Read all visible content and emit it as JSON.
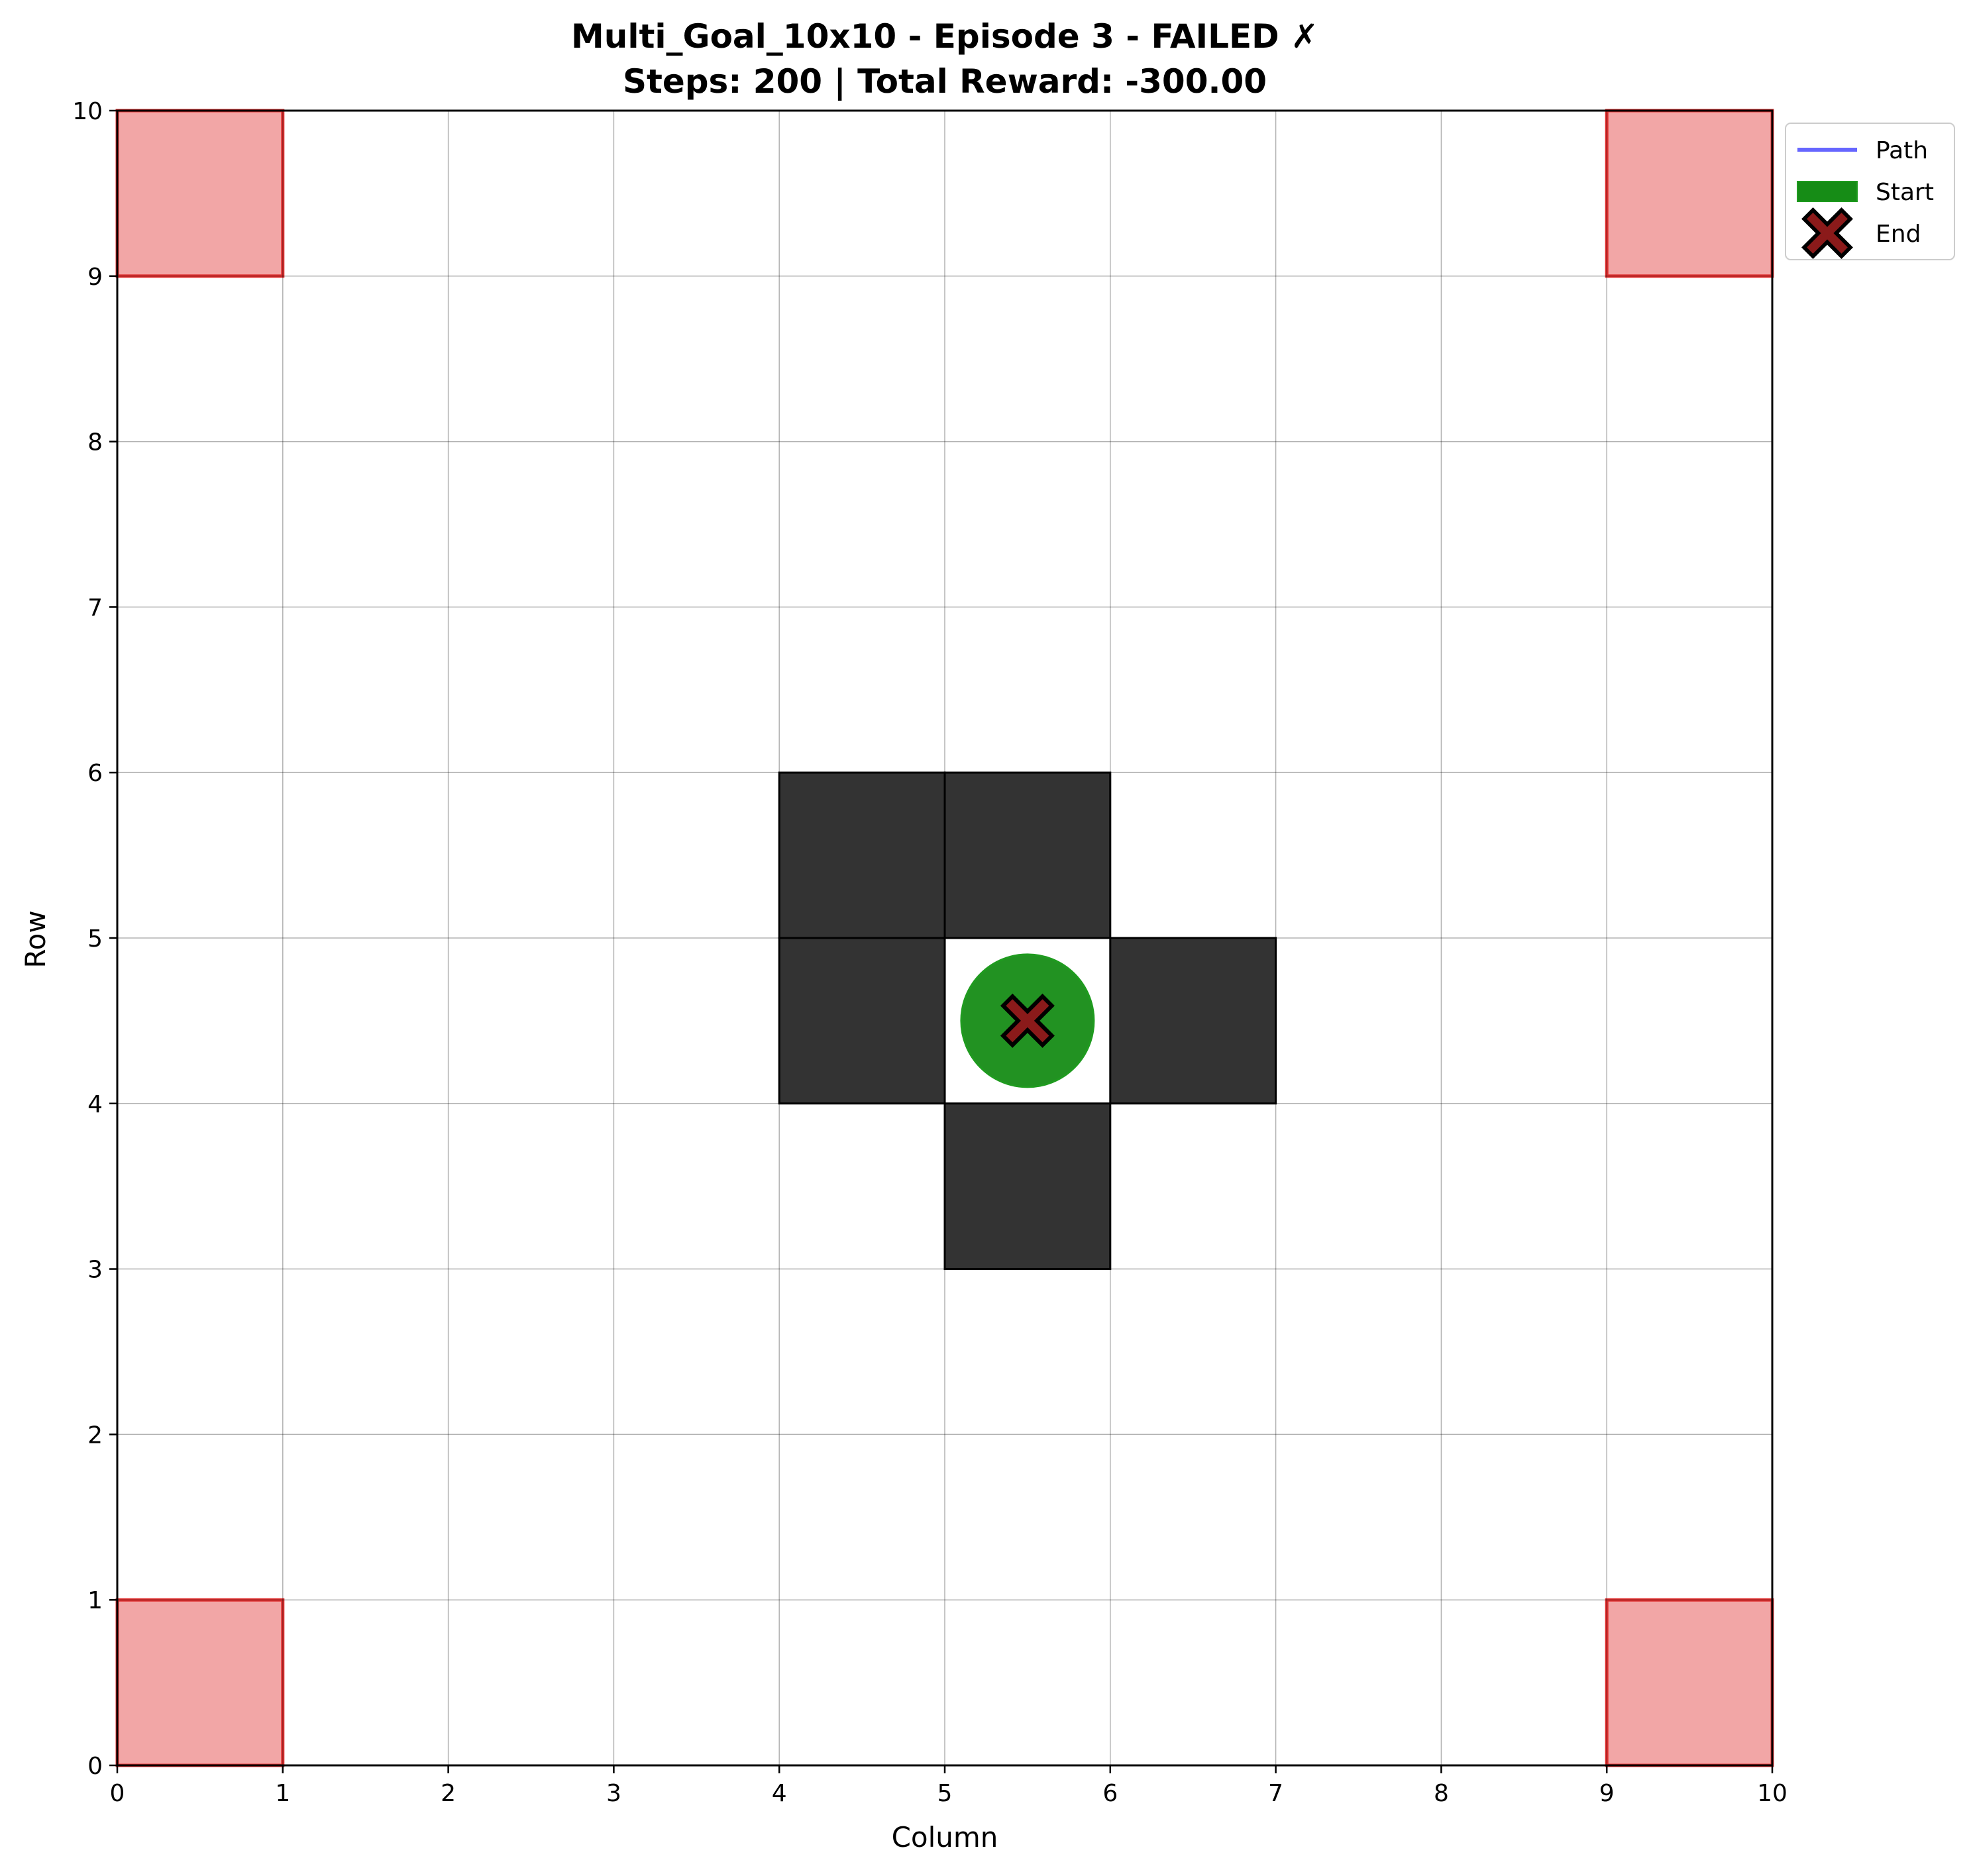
{
  "chart_data": {
    "type": "heatmap",
    "title_line1": "Multi_Goal_10x10 - Episode 3 - FAILED ✗",
    "title_line2": "Steps: 200 | Total Reward: -300.00",
    "xlabel": "Column",
    "ylabel": "Row",
    "xlim": [
      0,
      10
    ],
    "ylim": [
      0,
      10
    ],
    "grid": true,
    "x_ticks": [
      "0",
      "1",
      "2",
      "3",
      "4",
      "5",
      "6",
      "7",
      "8",
      "9",
      "10"
    ],
    "y_ticks": [
      "0",
      "1",
      "2",
      "3",
      "4",
      "5",
      "6",
      "7",
      "8",
      "9",
      "10"
    ],
    "goal_cells": [
      {
        "col": 0,
        "row": 9
      },
      {
        "col": 9,
        "row": 9
      },
      {
        "col": 0,
        "row": 0
      },
      {
        "col": 9,
        "row": 0
      }
    ],
    "obstacle_cells": [
      {
        "col": 4,
        "row": 5
      },
      {
        "col": 5,
        "row": 5
      },
      {
        "col": 4,
        "row": 4
      },
      {
        "col": 6,
        "row": 4
      },
      {
        "col": 5,
        "row": 3
      }
    ],
    "path": [
      [
        5.5,
        4.5
      ]
    ],
    "start": {
      "x": 5.5,
      "y": 4.5
    },
    "end": {
      "x": 5.5,
      "y": 4.5
    },
    "legend": {
      "position": "upper-right-outside",
      "entries": [
        {
          "label": "Path",
          "marker": "line",
          "color": "#6666ff"
        },
        {
          "label": "Start",
          "marker": "patch",
          "color": "#168c16"
        },
        {
          "label": "End",
          "marker": "x",
          "color": "#8b1a1a"
        }
      ]
    },
    "colors": {
      "goal_fill": "#f2a6a6",
      "goal_edge": "#e03030",
      "obstacle": "#333333",
      "start": "#168c16",
      "end": "#8b1a1a",
      "path": "#6666ff"
    }
  }
}
